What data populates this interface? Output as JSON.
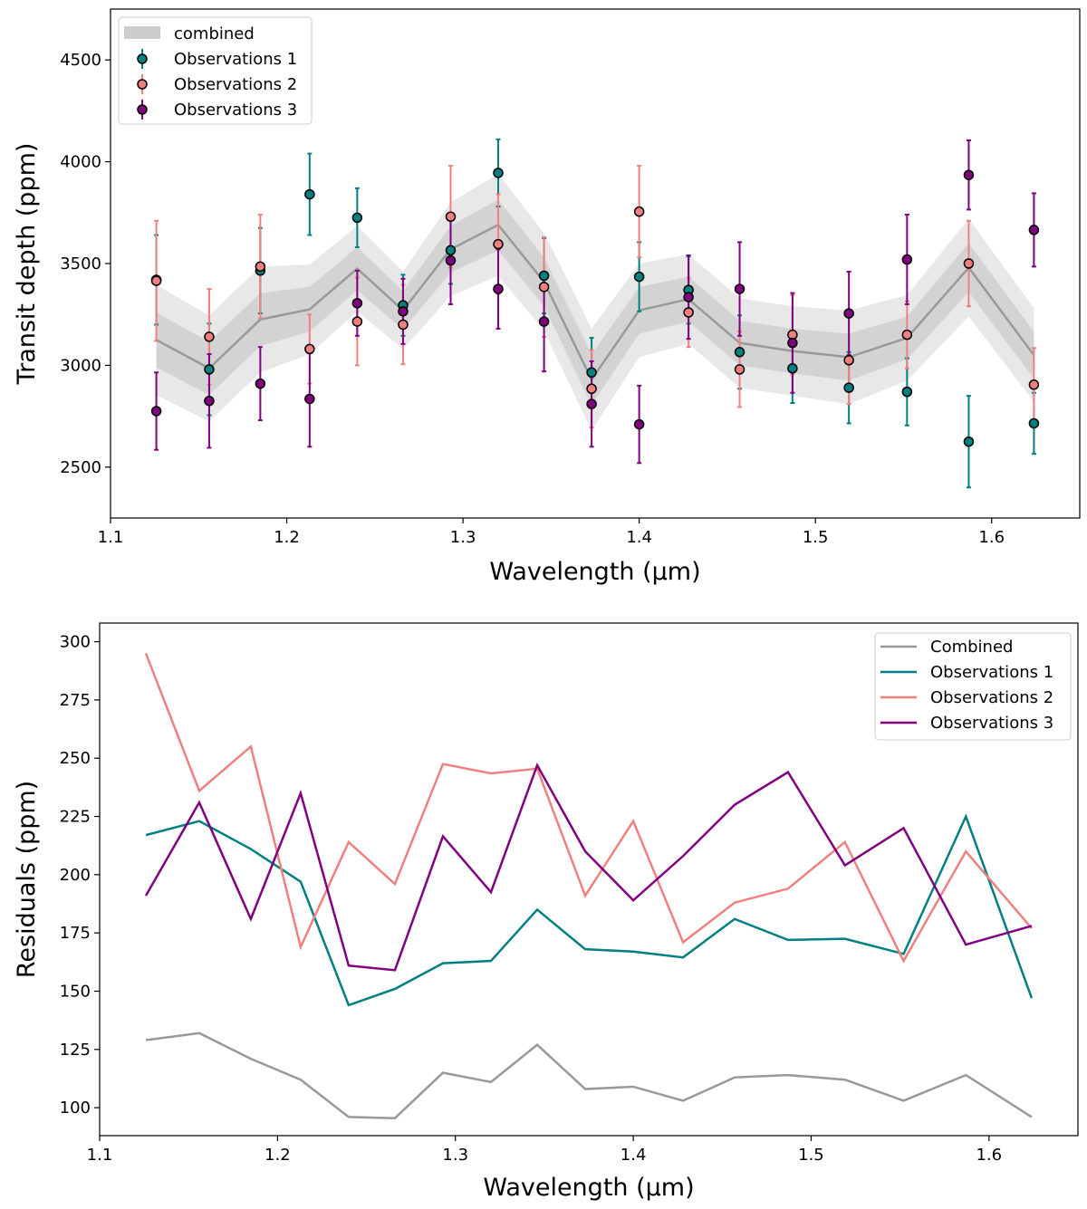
{
  "chart_data": [
    {
      "type": "scatter",
      "title": "",
      "xlabel": "Wavelength (µm)",
      "ylabel": "Transit depth (ppm)",
      "xlim": [
        1.1,
        1.65
      ],
      "ylim": [
        2250,
        4750
      ],
      "xticks": [
        1.1,
        1.2,
        1.3,
        1.4,
        1.5,
        1.6
      ],
      "xtick_labels": [
        "1.1",
        "1.2",
        "1.3",
        "1.4",
        "1.5",
        "1.6"
      ],
      "yticks": [
        2500,
        3000,
        3500,
        4000,
        4500
      ],
      "ytick_labels": [
        "2500",
        "3000",
        "3500",
        "4000",
        "4500"
      ],
      "legend_position": "top-left",
      "x": [
        1.126,
        1.156,
        1.185,
        1.213,
        1.24,
        1.266,
        1.293,
        1.32,
        1.346,
        1.373,
        1.4,
        1.428,
        1.457,
        1.487,
        1.519,
        1.552,
        1.587,
        1.624
      ],
      "combined": {
        "name": "combined",
        "color": "#999999",
        "band_color": "#cccccc",
        "values": [
          3125,
          2985,
          3225,
          3275,
          3475,
          3270,
          3570,
          3690,
          3410,
          2930,
          3270,
          3325,
          3110,
          3070,
          3040,
          3135,
          3480,
          3050
        ],
        "sigma1": [
          135,
          130,
          130,
          110,
          105,
          95,
          115,
          125,
          120,
          125,
          115,
          110,
          110,
          110,
          115,
          105,
          120,
          115
        ],
        "sigma2": [
          270,
          260,
          260,
          220,
          210,
          190,
          230,
          250,
          240,
          250,
          230,
          220,
          220,
          220,
          230,
          210,
          240,
          230
        ]
      },
      "series": [
        {
          "name": "Observations 1",
          "color": "#008080",
          "values": [
            3420,
            2980,
            3465,
            3840,
            3725,
            3295,
            3565,
            3945,
            3440,
            2965,
            3435,
            3370,
            3065,
            2985,
            2890,
            2870,
            2625,
            2715
          ],
          "errors": [
            220,
            225,
            210,
            200,
            145,
            150,
            165,
            165,
            185,
            170,
            170,
            165,
            180,
            170,
            175,
            165,
            225,
            150
          ]
        },
        {
          "name": "Observations 2",
          "color": "#f08080",
          "values": [
            3415,
            3140,
            3485,
            3080,
            3215,
            3200,
            3730,
            3595,
            3385,
            2885,
            3755,
            3260,
            2980,
            3150,
            3025,
            3150,
            3500,
            2905
          ],
          "errors": [
            295,
            235,
            255,
            170,
            215,
            195,
            250,
            245,
            245,
            190,
            225,
            170,
            185,
            195,
            215,
            165,
            210,
            180
          ]
        },
        {
          "name": "Observations 3",
          "color": "#800080",
          "values": [
            2775,
            2825,
            2910,
            2835,
            3305,
            3265,
            3515,
            3375,
            3215,
            2810,
            2710,
            3335,
            3375,
            3110,
            3255,
            3520,
            3935,
            3665
          ],
          "errors": [
            190,
            230,
            180,
            235,
            160,
            160,
            215,
            195,
            245,
            210,
            190,
            205,
            230,
            245,
            205,
            220,
            170,
            180
          ]
        }
      ]
    },
    {
      "type": "line",
      "title": "",
      "xlabel": "Wavelength (µm)",
      "ylabel": "Residuals (ppm)",
      "xlim": [
        1.1,
        1.65
      ],
      "ylim": [
        88,
        308
      ],
      "xticks": [
        1.1,
        1.2,
        1.3,
        1.4,
        1.5,
        1.6
      ],
      "xtick_labels": [
        "1.1",
        "1.2",
        "1.3",
        "1.4",
        "1.5",
        "1.6"
      ],
      "yticks": [
        100,
        125,
        150,
        175,
        200,
        225,
        250,
        275,
        300
      ],
      "ytick_labels": [
        "100",
        "125",
        "150",
        "175",
        "200",
        "225",
        "250",
        "275",
        "300"
      ],
      "legend_position": "top-right",
      "x": [
        1.126,
        1.156,
        1.185,
        1.213,
        1.24,
        1.266,
        1.293,
        1.32,
        1.346,
        1.373,
        1.4,
        1.428,
        1.457,
        1.487,
        1.519,
        1.552,
        1.587,
        1.624
      ],
      "series": [
        {
          "name": "Combined",
          "color": "#999999",
          "values": [
            129,
            132,
            121,
            112,
            96,
            95.5,
            115,
            111,
            127,
            108,
            109,
            103,
            113,
            114,
            112,
            103,
            114,
            96
          ]
        },
        {
          "name": "Observations 1",
          "color": "#008080",
          "values": [
            217,
            223,
            211,
            197,
            144,
            151,
            162,
            163,
            185,
            168,
            167,
            164.5,
            181,
            172,
            172.5,
            166,
            225,
            147
          ]
        },
        {
          "name": "Observations 2",
          "color": "#f08080",
          "values": [
            295,
            236,
            255,
            169,
            214,
            196,
            247.5,
            243.5,
            245.5,
            191,
            223,
            171,
            188,
            194,
            214,
            163,
            210,
            177
          ]
        },
        {
          "name": "Observations 3",
          "color": "#800080",
          "values": [
            191,
            231,
            181,
            235,
            161,
            159,
            216.5,
            192.5,
            247,
            210,
            189,
            208,
            230,
            244,
            204,
            220,
            170,
            178
          ]
        }
      ]
    }
  ]
}
